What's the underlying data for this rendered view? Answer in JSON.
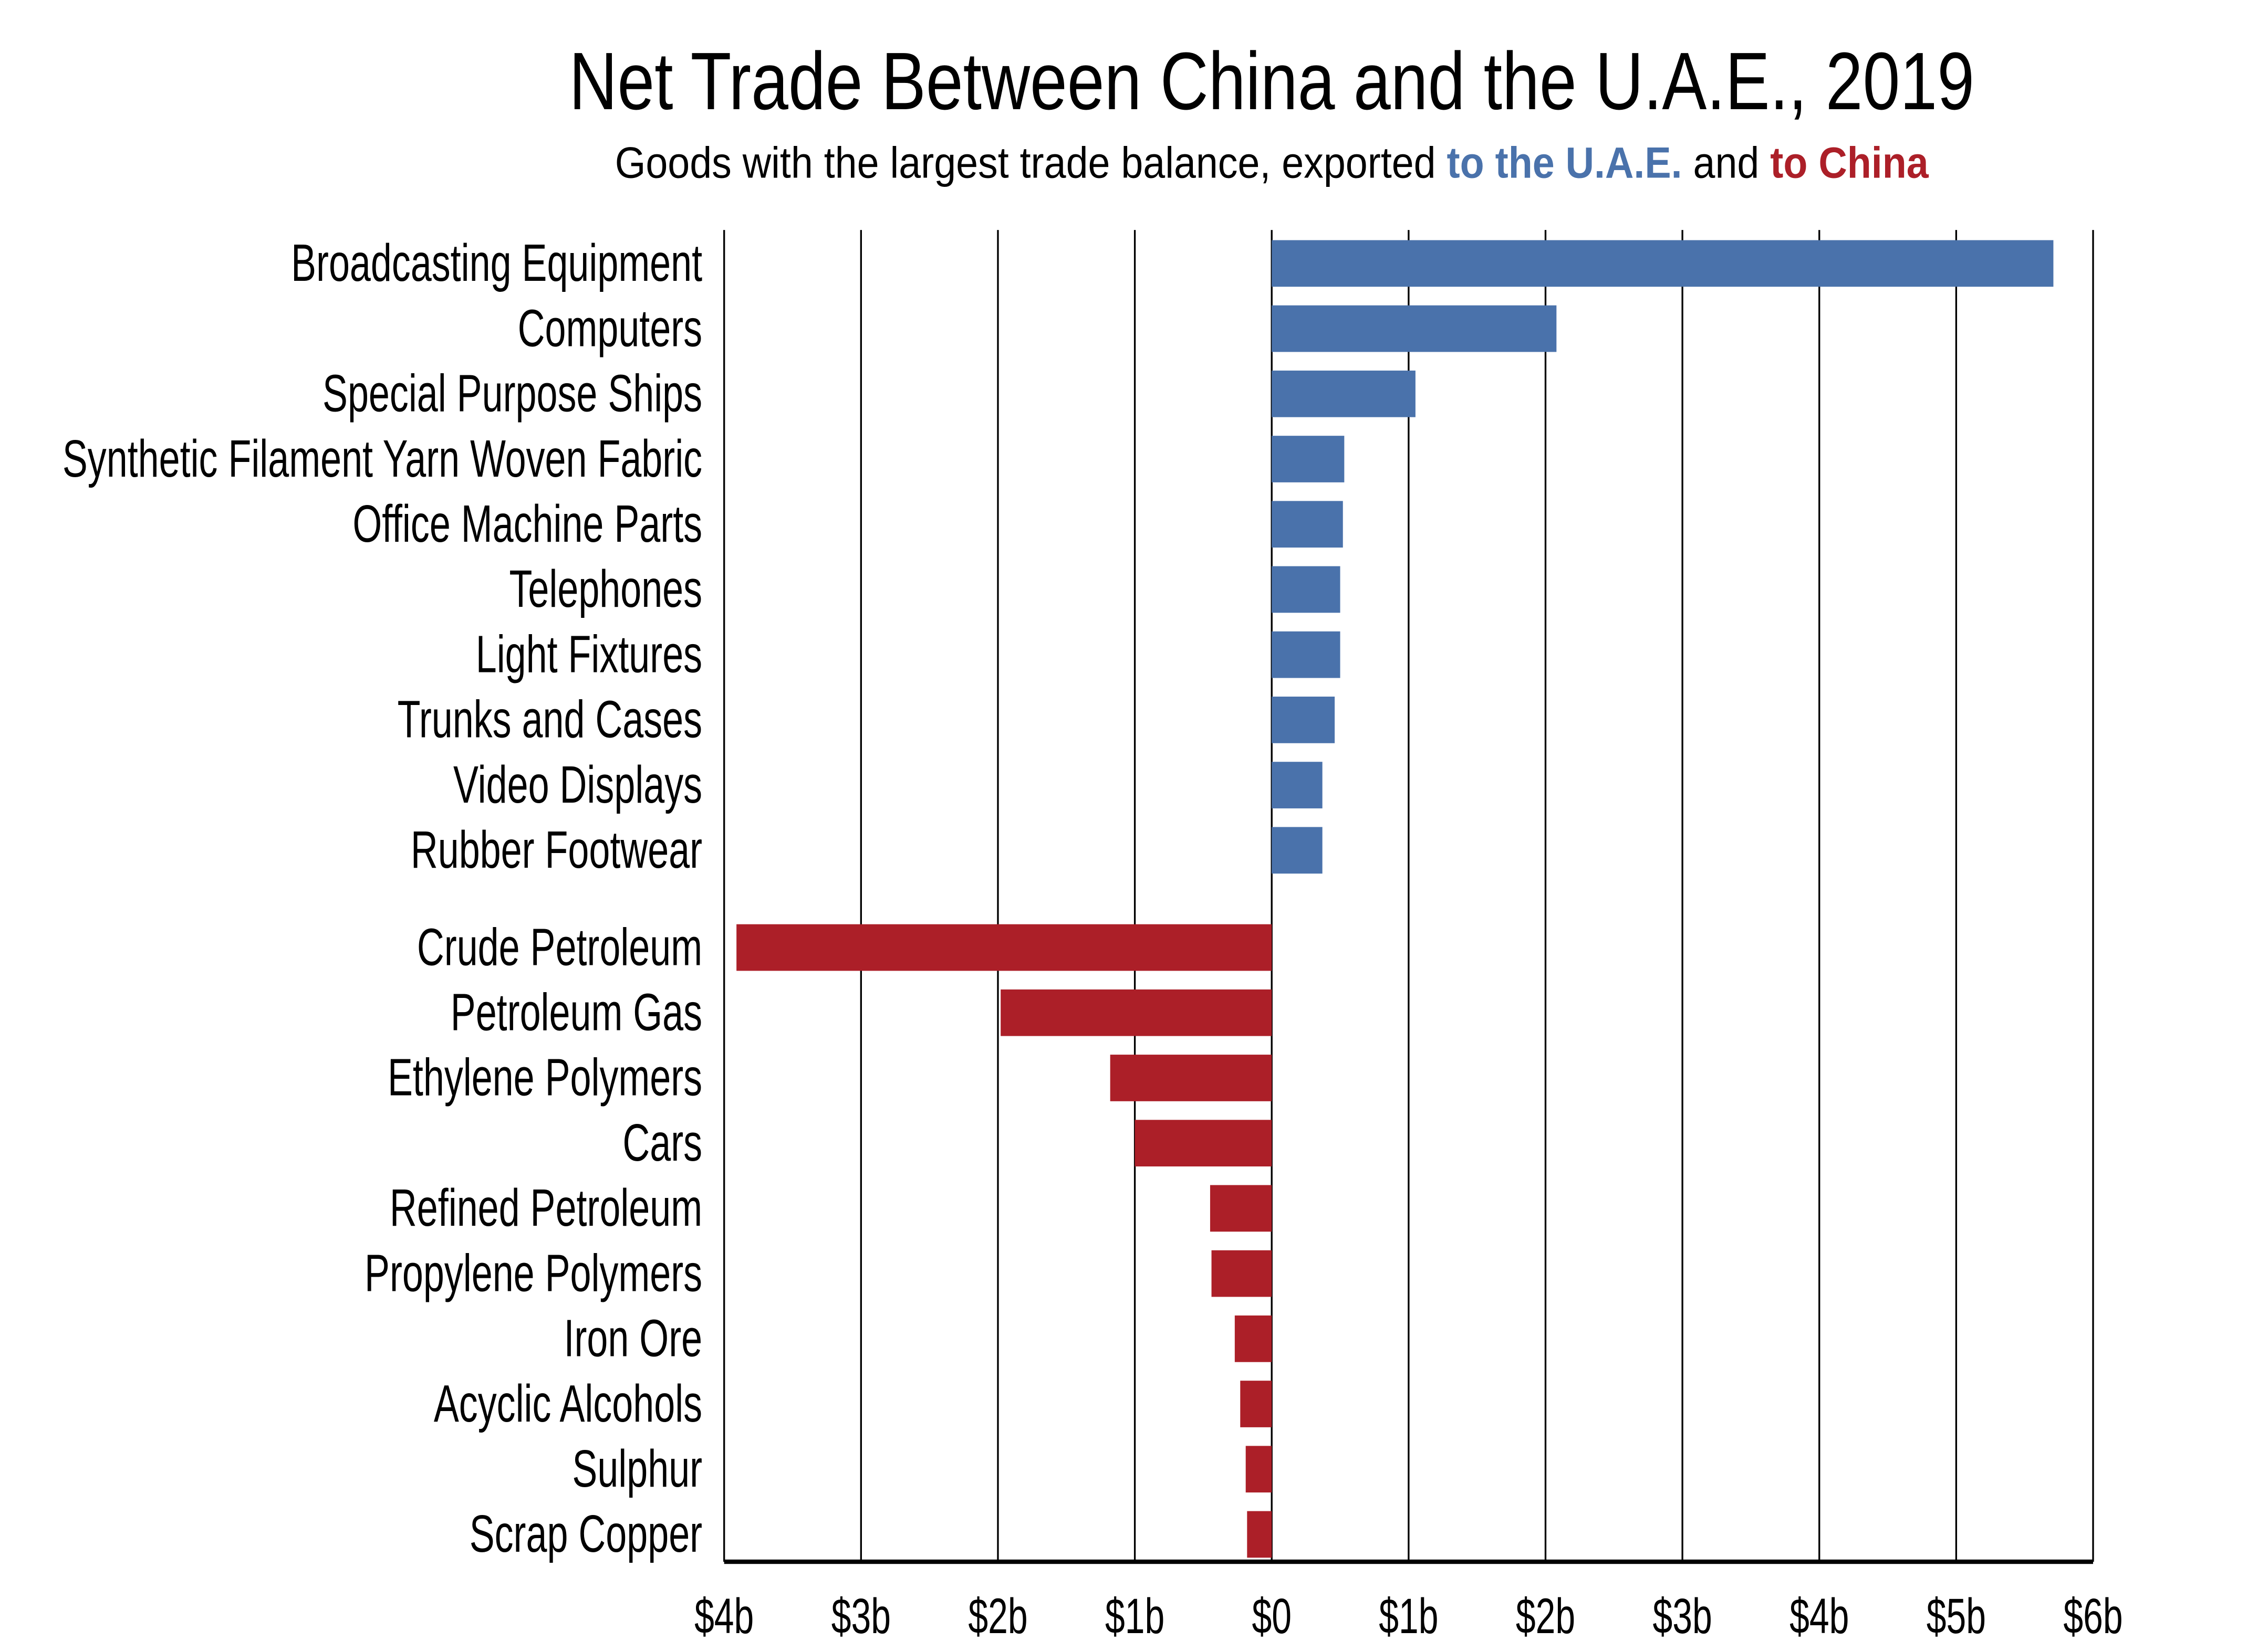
{
  "chart_data": {
    "type": "bar",
    "orientation": "horizontal",
    "title": "Net Trade Between China and the U.A.E., 2019",
    "subtitle": {
      "prefix": "Goods with the largest trade balance, exported ",
      "uae": "to the U.A.E.",
      "middle": " and ",
      "china": "to China"
    },
    "xlim": [
      -4,
      6
    ],
    "x_ticks": [
      -4,
      -3,
      -2,
      -1,
      0,
      1,
      2,
      3,
      4,
      5,
      6
    ],
    "x_tick_labels": [
      "$4b",
      "$3b",
      "$2b",
      "$1b",
      "$0",
      "$1b",
      "$2b",
      "$3b",
      "$4b",
      "$5b",
      "$6b"
    ],
    "grid": "vertical",
    "colors": {
      "to_uae": "#4a72ab",
      "to_china": "#ac1f28"
    },
    "groups": [
      {
        "key": "to_uae",
        "categories": [
          "Broadcasting Equipment",
          "Computers",
          "Special Purpose Ships",
          "Synthetic Filament Yarn Woven Fabric",
          "Office Machine Parts",
          "Telephones",
          "Light Fixtures",
          "Trunks and Cases",
          "Video Displays",
          "Rubber Footwear"
        ],
        "values": [
          5.71,
          2.08,
          1.05,
          0.53,
          0.52,
          0.5,
          0.5,
          0.46,
          0.37,
          0.37
        ]
      },
      {
        "key": "to_china",
        "categories": [
          "Crude Petroleum",
          "Petroleum Gas",
          "Ethylene Polymers",
          "Cars",
          "Refined Petroleum",
          "Propylene Polymers",
          "Iron Ore",
          "Acyclic Alcohols",
          "Sulphur",
          "Scrap Copper"
        ],
        "values": [
          -3.91,
          -1.98,
          -1.18,
          -1.0,
          -0.45,
          -0.44,
          -0.27,
          -0.23,
          -0.19,
          -0.18
        ]
      }
    ]
  }
}
